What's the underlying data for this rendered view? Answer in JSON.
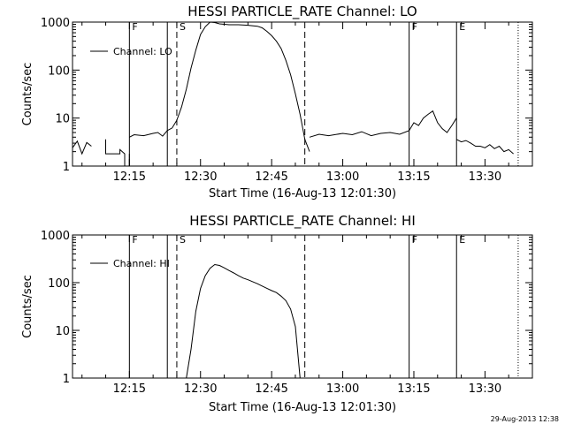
{
  "footer": {
    "timestamp": "29-Aug-2013 12:38"
  },
  "chart_data": [
    {
      "type": "line",
      "title": "HESSI PARTICLE_RATE Channel: LO",
      "xlabel": "Start Time (16-Aug-13 12:01:30)",
      "ylabel": "Counts/sec",
      "yscale": "log",
      "xlim": [
        "12:03",
        "13:40"
      ],
      "ylim": [
        1,
        1000
      ],
      "x_ticks": [
        "12:15",
        "12:30",
        "12:45",
        "13:00",
        "13:15",
        "13:30"
      ],
      "y_ticks": [
        "1",
        "10",
        "100",
        "1000"
      ],
      "legend": {
        "label": "Channel: LO",
        "position": "top-left"
      },
      "markers": [
        {
          "time": "12:15",
          "style": "solid",
          "label": "F"
        },
        {
          "time": "12:23",
          "style": "solid",
          "label": ""
        },
        {
          "time": "12:25",
          "style": "dashed",
          "label": "S"
        },
        {
          "time": "12:52",
          "style": "dashed",
          "label": ""
        },
        {
          "time": "13:14",
          "style": "solid",
          "label": "F"
        },
        {
          "time": "13:24",
          "style": "solid",
          "label": "E"
        },
        {
          "time": "13:37",
          "style": "dotted",
          "label": ""
        }
      ],
      "series": [
        {
          "name": "Channel: LO",
          "segments": [
            {
              "x": [
                "12:03",
                "12:04",
                "12:05",
                "12:06",
                "12:07"
              ],
              "y": [
                2.4,
                3.3,
                1.8,
                3.1,
                2.6
              ]
            },
            {
              "x": [
                "12:10",
                "12:10",
                "12:13",
                "12:13",
                "12:14",
                "12:14",
                "12:15",
                "12:15"
              ],
              "y": [
                3.6,
                1.8,
                1.8,
                2.2,
                1.8,
                1.0,
                1.0,
                1.8
              ]
            },
            {
              "x": [
                "12:15",
                "12:16",
                "12:18",
                "12:20",
                "12:21",
                "12:22",
                "12:23",
                "12:24",
                "12:25",
                "12:26",
                "12:27",
                "12:28",
                "12:29",
                "12:30",
                "12:31",
                "12:32",
                "12:33",
                "12:34",
                "12:36",
                "12:38",
                "12:40",
                "12:42",
                "12:43",
                "12:44",
                "12:45",
                "12:46",
                "12:47",
                "12:48",
                "12:49",
                "12:50",
                "12:51",
                "12:52",
                "12:53"
              ],
              "y": [
                4.0,
                4.5,
                4.3,
                4.8,
                5.0,
                4.2,
                5.5,
                6.2,
                9.0,
                17,
                40,
                110,
                260,
                550,
                800,
                1000,
                980,
                920,
                880,
                880,
                860,
                820,
                760,
                640,
                520,
                400,
                280,
                160,
                80,
                32,
                12,
                3.6,
                2.0
              ]
            },
            {
              "x": [
                "12:53",
                "12:55",
                "12:57",
                "13:00",
                "13:02",
                "13:04",
                "13:06",
                "13:08",
                "13:10",
                "13:12",
                "13:14",
                "13:15",
                "13:16",
                "13:17",
                "13:18",
                "13:19",
                "13:20",
                "13:21",
                "13:22",
                "13:23",
                "13:24"
              ],
              "y": [
                4.0,
                4.6,
                4.3,
                4.8,
                4.5,
                5.2,
                4.3,
                4.8,
                5.0,
                4.6,
                5.5,
                8,
                7,
                10,
                12,
                14,
                8,
                6,
                5,
                7,
                10
              ]
            },
            {
              "x": [
                "13:24",
                "13:25",
                "13:26",
                "13:27",
                "13:28",
                "13:29",
                "13:30",
                "13:31",
                "13:32",
                "13:33",
                "13:34",
                "13:35",
                "13:36"
              ],
              "y": [
                3.6,
                3.2,
                3.4,
                3.0,
                2.6,
                2.6,
                2.4,
                2.8,
                2.3,
                2.6,
                2.0,
                2.2,
                1.8
              ]
            }
          ]
        }
      ]
    },
    {
      "type": "line",
      "title": "HESSI PARTICLE_RATE Channel: HI",
      "xlabel": "Start Time (16-Aug-13 12:01:30)",
      "ylabel": "Counts/sec",
      "yscale": "log",
      "xlim": [
        "12:03",
        "13:40"
      ],
      "ylim": [
        1,
        1000
      ],
      "x_ticks": [
        "12:15",
        "12:30",
        "12:45",
        "13:00",
        "13:15",
        "13:30"
      ],
      "y_ticks": [
        "1",
        "10",
        "100",
        "1000"
      ],
      "legend": {
        "label": "Channel: HI",
        "position": "top-left"
      },
      "markers": [
        {
          "time": "12:15",
          "style": "solid",
          "label": "F"
        },
        {
          "time": "12:23",
          "style": "solid",
          "label": ""
        },
        {
          "time": "12:25",
          "style": "dashed",
          "label": "S"
        },
        {
          "time": "12:52",
          "style": "dashed",
          "label": ""
        },
        {
          "time": "13:14",
          "style": "solid",
          "label": "F"
        },
        {
          "time": "13:24",
          "style": "solid",
          "label": "E"
        },
        {
          "time": "13:37",
          "style": "dotted",
          "label": ""
        }
      ],
      "series": [
        {
          "name": "Channel: HI",
          "segments": [
            {
              "x": [
                "12:27",
                "12:28",
                "12:29",
                "12:30",
                "12:31",
                "12:32",
                "12:33",
                "12:34",
                "12:35",
                "12:36",
                "12:37",
                "12:38",
                "12:39",
                "12:40",
                "12:41",
                "12:42",
                "12:43",
                "12:44",
                "12:45",
                "12:46",
                "12:47",
                "12:48",
                "12:49",
                "12:50",
                "12:51"
              ],
              "y": [
                1.0,
                4,
                25,
                75,
                140,
                200,
                240,
                230,
                205,
                180,
                160,
                140,
                125,
                115,
                105,
                95,
                85,
                76,
                68,
                62,
                52,
                42,
                28,
                12,
                1.0
              ]
            }
          ]
        }
      ]
    }
  ]
}
